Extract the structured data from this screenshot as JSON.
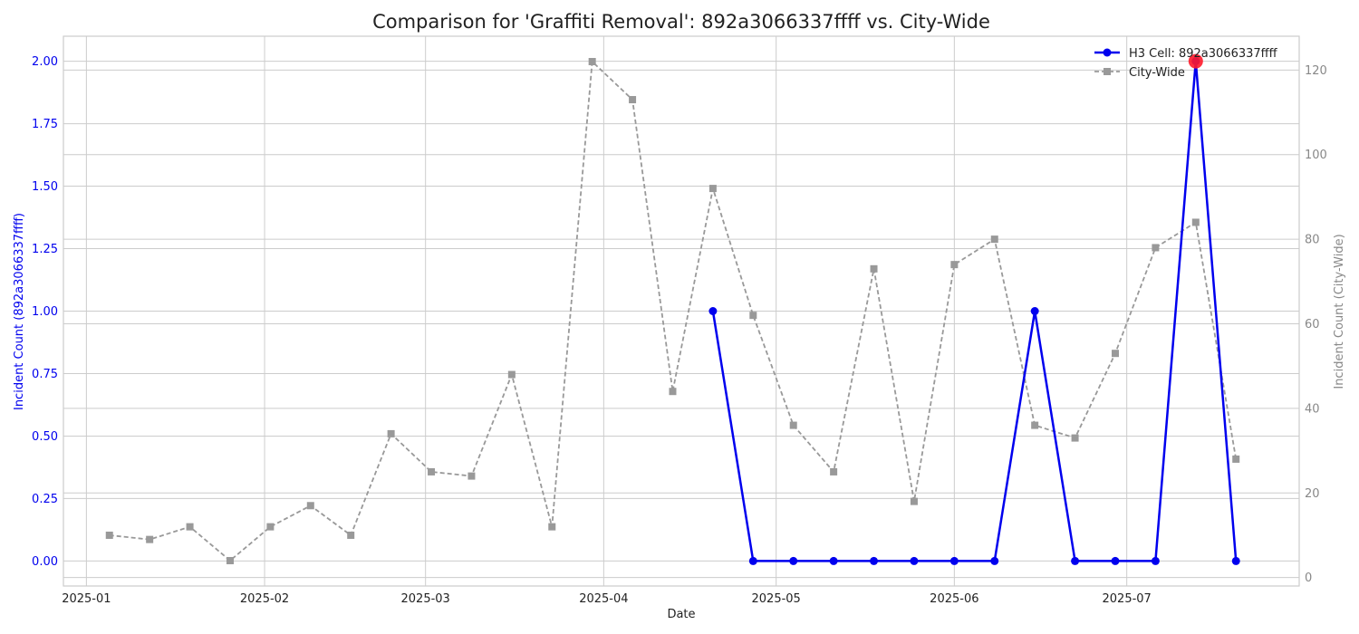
{
  "chart_data": {
    "type": "line",
    "title": "Comparison for 'Graffiti Removal': 892a3066337ffff vs. City-Wide",
    "xlabel": "Date",
    "ylabel_left": "Incident Count (892a3066337ffff)",
    "ylabel_right": "Incident Count (City-Wide)",
    "x_ticks": [
      "2025-01",
      "2025-02",
      "2025-03",
      "2025-04",
      "2025-05",
      "2025-06",
      "2025-07"
    ],
    "y_left_ticks": [
      "0.00",
      "0.25",
      "0.50",
      "0.75",
      "1.00",
      "1.25",
      "1.50",
      "1.75",
      "2.00"
    ],
    "y_right_ticks": [
      "0",
      "20",
      "40",
      "60",
      "80",
      "100",
      "120"
    ],
    "ylim_left": [
      -0.1,
      2.1
    ],
    "ylim_right": [
      -2,
      128
    ],
    "xlim": [
      "2024-12-28",
      "2025-07-31"
    ],
    "grid": true,
    "legend_position": "top-right",
    "colors": {
      "h3": "#0000ee",
      "city": "#999999",
      "highlight": "#ff1a2a",
      "left_axis": "#0000ee",
      "right_axis": "#888888"
    },
    "series": [
      {
        "name": "City-Wide",
        "axis": "right",
        "style": "dashed-square",
        "x": [
          "2025-01-05",
          "2025-01-12",
          "2025-01-19",
          "2025-01-26",
          "2025-02-02",
          "2025-02-09",
          "2025-02-16",
          "2025-02-23",
          "2025-03-02",
          "2025-03-09",
          "2025-03-16",
          "2025-03-23",
          "2025-03-30",
          "2025-04-06",
          "2025-04-13",
          "2025-04-20",
          "2025-04-27",
          "2025-05-04",
          "2025-05-11",
          "2025-05-18",
          "2025-05-25",
          "2025-06-01",
          "2025-06-08",
          "2025-06-15",
          "2025-06-22",
          "2025-06-29",
          "2025-07-06",
          "2025-07-13",
          "2025-07-20"
        ],
        "values": [
          10,
          9,
          12,
          4,
          12,
          17,
          10,
          34,
          25,
          24,
          48,
          12,
          122,
          113,
          44,
          92,
          62,
          36,
          25,
          73,
          18,
          74,
          80,
          36,
          33,
          53,
          78,
          84,
          28
        ]
      },
      {
        "name": "H3 Cell: 892a3066337ffff",
        "axis": "left",
        "style": "solid-circle",
        "x": [
          "2025-04-20",
          "2025-04-27",
          "2025-05-04",
          "2025-05-11",
          "2025-05-18",
          "2025-05-25",
          "2025-06-01",
          "2025-06-08",
          "2025-06-15",
          "2025-06-22",
          "2025-06-29",
          "2025-07-06",
          "2025-07-13",
          "2025-07-20"
        ],
        "values": [
          1,
          0,
          0,
          0,
          0,
          0,
          0,
          0,
          1,
          0,
          0,
          0,
          2,
          0
        ]
      }
    ],
    "highlight_point": {
      "series": "H3 Cell: 892a3066337ffff",
      "x": "2025-07-13",
      "y": 2
    }
  }
}
